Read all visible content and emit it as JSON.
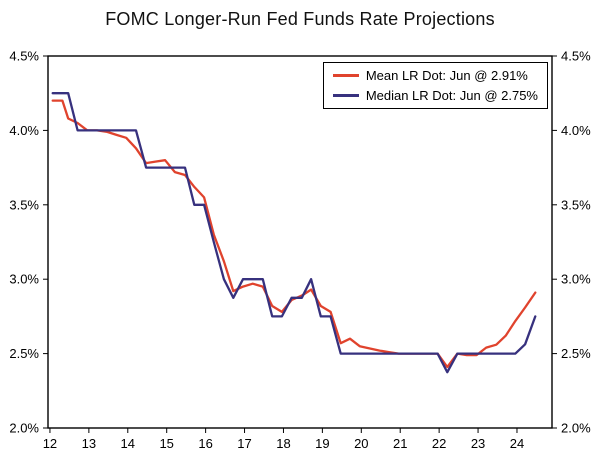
{
  "title": "FOMC Longer-Run Fed Funds Rate Projections",
  "colors": {
    "mean_line": "#e0432d",
    "median_line": "#37317e",
    "axis": "#000000",
    "background": "#ffffff"
  },
  "chart_data": {
    "type": "line",
    "title": "FOMC Longer-Run Fed Funds Rate Projections",
    "xlabel": "",
    "ylabel": "",
    "grid": false,
    "legend_position": "top-right",
    "xlim": [
      2011.95,
      2024.9
    ],
    "ylim": [
      2.0,
      4.5
    ],
    "x_ticks": [
      2012,
      2013,
      2014,
      2015,
      2016,
      2017,
      2018,
      2019,
      2020,
      2021,
      2022,
      2023,
      2024
    ],
    "x_tick_labels": [
      "12",
      "13",
      "14",
      "15",
      "16",
      "17",
      "18",
      "19",
      "20",
      "21",
      "22",
      "23",
      "24"
    ],
    "y_ticks": [
      2.0,
      2.5,
      3.0,
      3.5,
      4.0,
      4.5
    ],
    "y_tick_labels": [
      "2.0%",
      "2.5%",
      "3.0%",
      "3.5%",
      "4.0%",
      "4.5%"
    ],
    "x": [
      2012.07,
      2012.32,
      2012.47,
      2012.71,
      2012.96,
      2013.21,
      2013.47,
      2013.71,
      2013.96,
      2014.21,
      2014.47,
      2014.71,
      2014.96,
      2015.21,
      2015.47,
      2015.71,
      2015.96,
      2016.21,
      2016.47,
      2016.71,
      2016.96,
      2017.21,
      2017.47,
      2017.71,
      2017.96,
      2018.21,
      2018.47,
      2018.71,
      2018.96,
      2019.21,
      2019.47,
      2019.71,
      2019.96,
      2020.47,
      2020.71,
      2020.96,
      2021.21,
      2021.47,
      2021.71,
      2021.96,
      2022.21,
      2022.47,
      2022.71,
      2022.96,
      2023.21,
      2023.47,
      2023.71,
      2023.96,
      2024.21,
      2024.47
    ],
    "series": [
      {
        "name": "Mean LR Dot",
        "legend_label": "Mean LR Dot: Jun @ 2.91%",
        "color": "#e0432d",
        "latest_label": "Jun",
        "latest_value": 2.91,
        "values": [
          4.2,
          4.2,
          4.08,
          4.05,
          4.0,
          4.0,
          3.99,
          3.97,
          3.95,
          3.88,
          3.78,
          3.79,
          3.8,
          3.72,
          3.7,
          3.62,
          3.55,
          3.3,
          3.12,
          2.92,
          2.95,
          2.97,
          2.95,
          2.82,
          2.78,
          2.86,
          2.89,
          2.93,
          2.82,
          2.78,
          2.57,
          2.6,
          2.55,
          2.52,
          2.51,
          2.5,
          2.5,
          2.5,
          2.5,
          2.5,
          2.41,
          2.5,
          2.49,
          2.49,
          2.54,
          2.56,
          2.62,
          2.72,
          2.81,
          2.91
        ]
      },
      {
        "name": "Median LR Dot",
        "legend_label": "Median LR Dot: Jun @ 2.75%",
        "color": "#37317e",
        "latest_label": "Jun",
        "latest_value": 2.75,
        "values": [
          4.25,
          4.25,
          4.25,
          4.0,
          4.0,
          4.0,
          4.0,
          4.0,
          4.0,
          4.0,
          3.75,
          3.75,
          3.75,
          3.75,
          3.75,
          3.5,
          3.5,
          3.25,
          3.0,
          2.875,
          3.0,
          3.0,
          3.0,
          2.75,
          2.75,
          2.875,
          2.875,
          3.0,
          2.75,
          2.75,
          2.5,
          2.5,
          2.5,
          2.5,
          2.5,
          2.5,
          2.5,
          2.5,
          2.5,
          2.5,
          2.375,
          2.5,
          2.5,
          2.5,
          2.5,
          2.5,
          2.5,
          2.5,
          2.5625,
          2.75
        ]
      }
    ]
  }
}
